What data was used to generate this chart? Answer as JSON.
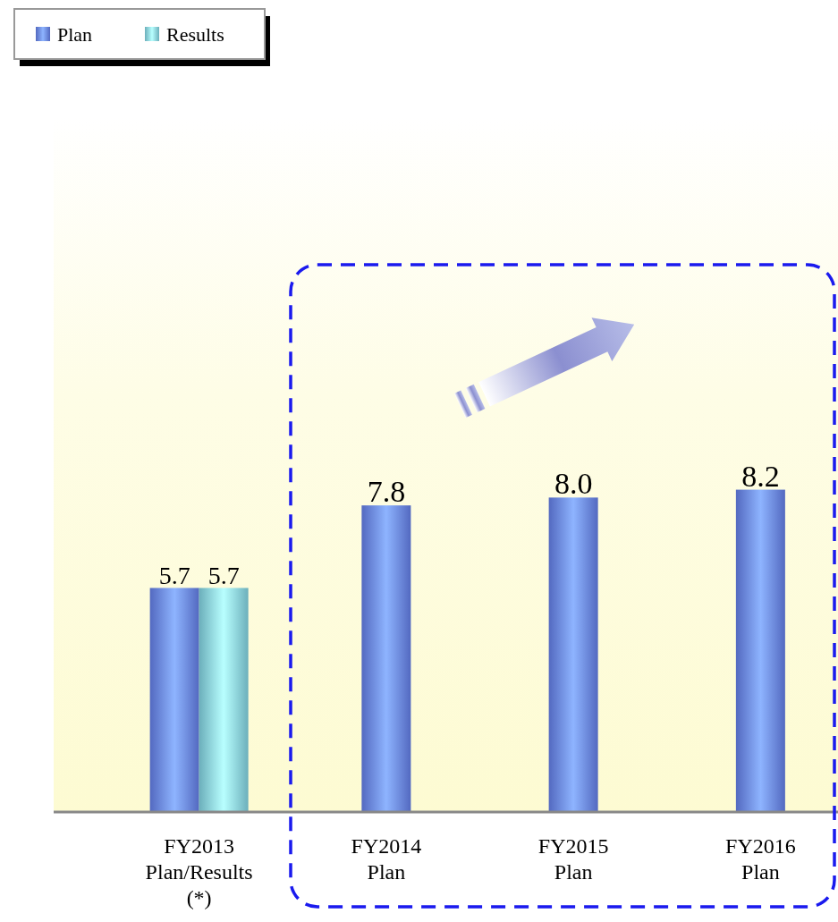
{
  "chart_data": {
    "type": "bar",
    "categories": [
      "FY2013\nPlan/Results\n(*)",
      "FY2014\nPlan",
      "FY2015\nPlan",
      "FY2016\nPlan"
    ],
    "series": [
      {
        "name": "Plan",
        "color": "#6f8cff",
        "values": [
          5.7,
          7.8,
          8.0,
          8.2
        ],
        "value_labels": [
          "5.7",
          "7.8",
          "8.0",
          "8.2"
        ]
      },
      {
        "name": "Results",
        "color": "#8fe9f9",
        "values": [
          5.7,
          null,
          null,
          null
        ],
        "value_labels": [
          "5.7",
          null,
          null,
          null
        ]
      }
    ],
    "ylim": [
      0,
      17.7
    ],
    "data_labels": true,
    "legend": "top left",
    "grid": false
  }
}
